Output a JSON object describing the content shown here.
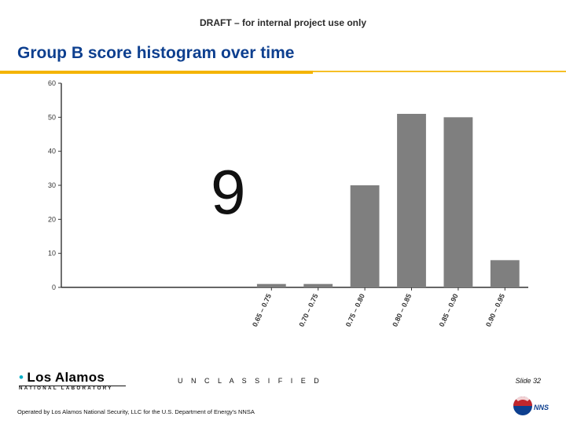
{
  "header": {
    "draft": "DRAFT – for internal project use only"
  },
  "title": {
    "text": "Group B score histogram over time",
    "color": "#0d3f8f",
    "fontsize": 21,
    "underline_color": "#f4b400"
  },
  "overlay": {
    "big_number": "9",
    "fontsize": 80,
    "color": "#111111"
  },
  "chart": {
    "type": "bar",
    "ylim": [
      0,
      60
    ],
    "ytick_step": 10,
    "yticks": [
      "0",
      "10",
      "20",
      "30",
      "40",
      "50",
      "60"
    ],
    "categories": [
      "0.65 – 0.75",
      "0.70 – 0.75",
      "0.75 – 0.80",
      "0.80 – 0.85",
      "0.85 – 0.90",
      "0.90 – 0.95"
    ],
    "values": [
      1,
      1,
      30,
      51,
      50,
      8
    ],
    "bar_color": "#7f7f7f",
    "axis_color": "#333333",
    "tick_label_fontsize": 9,
    "bar_width": 0.62,
    "background_color": "#ffffff"
  },
  "footer": {
    "unclassified": "U N C L A S S I F I E D",
    "slide_label": "Slide 32",
    "operated": "Operated by Los Alamos National Security, LLC for the U.S. Department of Energy's NNSA",
    "logo_main": "Los Alamos",
    "logo_sub": "NATIONAL LABORATORY",
    "nnsa_blue": "#0d3f8f",
    "nnsa_red": "#c1272d",
    "nnsa_text": "NNSA"
  }
}
